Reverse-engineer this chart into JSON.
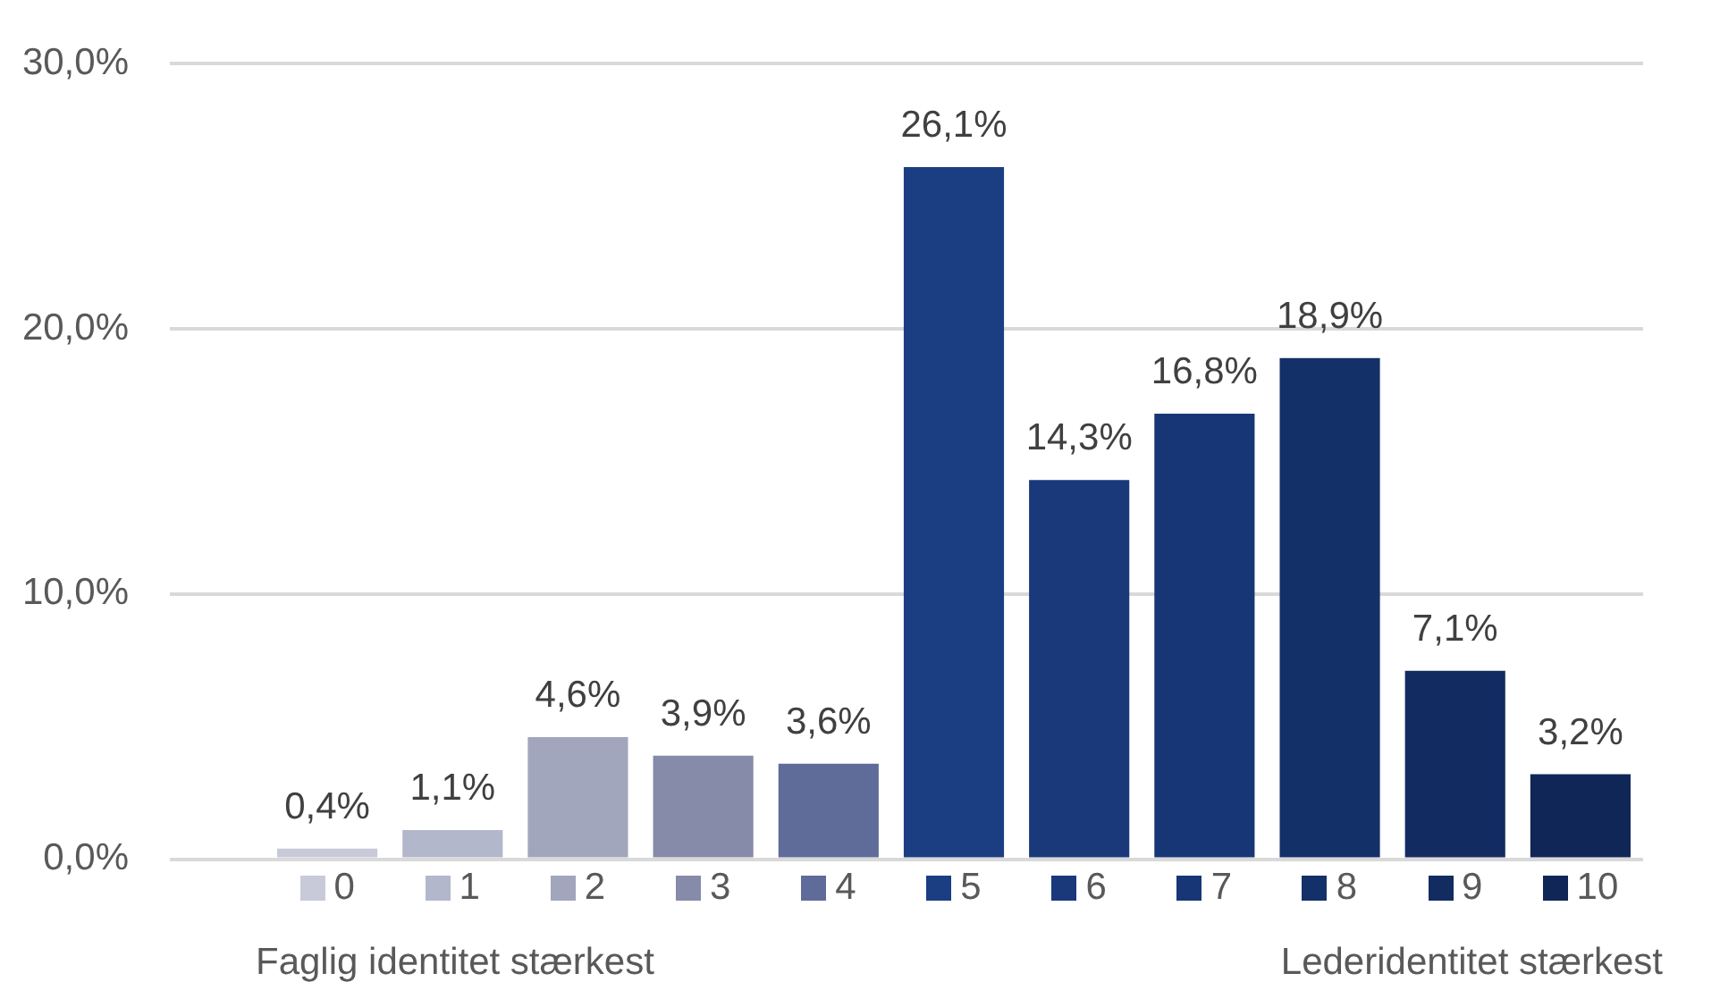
{
  "chart_data": {
    "type": "bar",
    "categories": [
      "0",
      "1",
      "2",
      "3",
      "4",
      "5",
      "6",
      "7",
      "8",
      "9",
      "10"
    ],
    "values": [
      0.4,
      1.1,
      4.6,
      3.9,
      3.6,
      26.1,
      14.3,
      16.8,
      18.9,
      7.1,
      3.2
    ],
    "colors": [
      "#c8cad9",
      "#b3b7cb",
      "#a1a6bd",
      "#858ba9",
      "#5f6c99",
      "#1b3e82",
      "#19397b",
      "#173676",
      "#143068",
      "#122c62",
      "#0f2656"
    ],
    "value_labels": [
      "0,4%",
      "1,1%",
      "4,6%",
      "3,9%",
      "3,6%",
      "26,1%",
      "14,3%",
      "16,8%",
      "18,9%",
      "7,1%",
      "3,2%"
    ],
    "ylim": [
      0,
      30
    ],
    "yticks": [
      {
        "value": 0,
        "label": "0,0%"
      },
      {
        "value": 10,
        "label": "10,0%"
      },
      {
        "value": 20,
        "label": "20,0%"
      },
      {
        "value": 30,
        "label": "30,0%"
      }
    ],
    "grid": "y",
    "annotations": [
      "Faglig identitet stærkest",
      "Lederidentitet stærkest"
    ]
  }
}
